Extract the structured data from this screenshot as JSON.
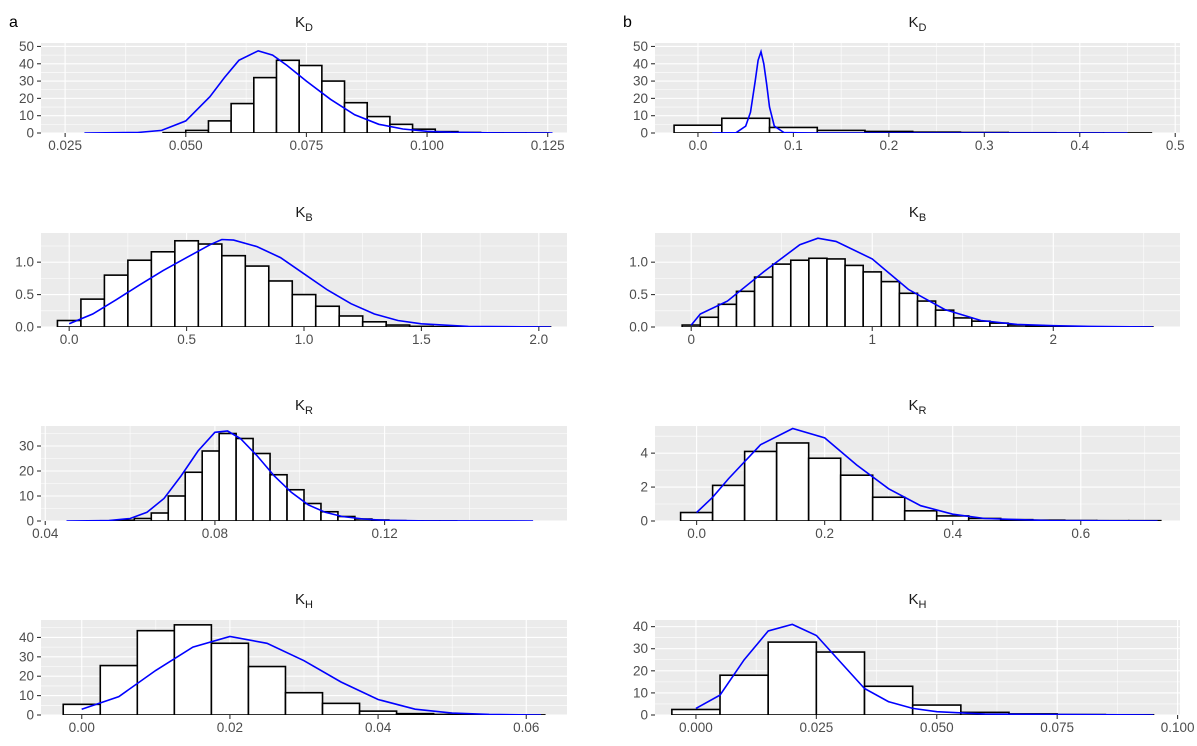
{
  "chart_data": [
    {
      "type": "histogram",
      "tag": "a",
      "title": "K",
      "title_sub": "D",
      "xlim": [
        0.02,
        0.129
      ],
      "ylim": [
        0,
        52
      ],
      "x_ticks": [
        0.05,
        0.075,
        0.1,
        0.125
      ],
      "x_tick_labels": [
        "0.050",
        "0.075",
        "0.100",
        "0.125"
      ],
      "x_ticks_extra": [
        0.025
      ],
      "x_ticks_extra_labels": [
        "0.025"
      ],
      "y_ticks": [
        0,
        10,
        20,
        30,
        40,
        50
      ],
      "y_tick_labels": [
        "0",
        "10",
        "20",
        "30",
        "40",
        "50"
      ],
      "bin_edges": [
        0.0265,
        0.0312,
        0.0359,
        0.0406,
        0.0453,
        0.05,
        0.0547,
        0.0594,
        0.0641,
        0.0688,
        0.0735,
        0.0782,
        0.0829,
        0.0876,
        0.0923,
        0.097,
        0.1017,
        0.1064,
        0.1111,
        0.1158,
        0.1205,
        0.1252
      ],
      "counts": [
        0,
        0,
        0,
        0,
        0.2,
        1.5,
        7,
        17,
        32,
        42,
        39,
        30,
        17.5,
        9.5,
        5,
        2.2,
        0.8,
        0.3,
        0.1,
        0.05,
        0.02
      ],
      "density_x": [
        0.029,
        0.04,
        0.045,
        0.05,
        0.055,
        0.058,
        0.061,
        0.065,
        0.068,
        0.071,
        0.075,
        0.08,
        0.085,
        0.09,
        0.095,
        0.1,
        0.105,
        0.11,
        0.115,
        0.126
      ],
      "density_y": [
        0,
        0.3,
        1.5,
        7,
        21,
        32,
        42,
        47.5,
        45,
        39,
        30,
        19.5,
        10.5,
        5,
        2.3,
        1,
        0.4,
        0.2,
        0.05,
        0
      ]
    },
    {
      "type": "histogram",
      "tag": "b",
      "title": "K",
      "title_sub": "D",
      "xlim": [
        -0.045,
        0.505
      ],
      "ylim": [
        0,
        52
      ],
      "x_ticks": [
        0,
        0.1,
        0.2,
        0.3,
        0.4,
        0.5
      ],
      "x_tick_labels": [
        "0.0",
        "0.1",
        "0.2",
        "0.3",
        "0.4",
        "0.5"
      ],
      "y_ticks": [
        0,
        10,
        20,
        30,
        40,
        50
      ],
      "y_tick_labels": [
        "0",
        "10",
        "20",
        "30",
        "40",
        "50"
      ],
      "bin_edges": [
        -0.025,
        0.025,
        0.075,
        0.125,
        0.175,
        0.225,
        0.275,
        0.325,
        0.375,
        0.425,
        0.475
      ],
      "counts": [
        4.5,
        8.5,
        3.2,
        1.5,
        0.9,
        0.5,
        0.3,
        0.15,
        0.07,
        0.03
      ],
      "density_x": [
        0.015,
        0.04,
        0.05,
        0.055,
        0.06,
        0.063,
        0.066,
        0.069,
        0.072,
        0.075,
        0.08,
        0.09,
        0.12,
        0.45
      ],
      "density_y": [
        0,
        0.2,
        4,
        12,
        30,
        42,
        47,
        40,
        28,
        15,
        4,
        0.3,
        0,
        0
      ]
    },
    {
      "type": "histogram",
      "tag": "",
      "title": "K",
      "title_sub": "B",
      "xlim": [
        -0.12,
        2.12
      ],
      "ylim": [
        0,
        1.45
      ],
      "x_ticks": [
        0,
        0.5,
        1,
        1.5,
        2
      ],
      "x_tick_labels": [
        "0.0",
        "0.5",
        "1.0",
        "1.5",
        "2.0"
      ],
      "y_ticks": [
        0,
        0.5,
        1
      ],
      "y_tick_labels": [
        "0.0",
        "0.5",
        "1.0"
      ],
      "bin_edges": [
        -0.05,
        0.05,
        0.15,
        0.25,
        0.35,
        0.45,
        0.55,
        0.65,
        0.75,
        0.85,
        0.95,
        1.05,
        1.15,
        1.25,
        1.35,
        1.45,
        1.55,
        1.65,
        1.75,
        1.85,
        1.95,
        2.05
      ],
      "counts": [
        0.1,
        0.43,
        0.8,
        1.03,
        1.16,
        1.33,
        1.28,
        1.1,
        0.94,
        0.71,
        0.5,
        0.32,
        0.17,
        0.08,
        0.03,
        0.01,
        0.005,
        0.003,
        0.002,
        0.001,
        0.001
      ],
      "density_x": [
        0,
        0.1,
        0.2,
        0.3,
        0.4,
        0.5,
        0.6,
        0.65,
        0.7,
        0.8,
        0.9,
        1.0,
        1.1,
        1.2,
        1.3,
        1.4,
        1.5,
        1.7,
        2.05
      ],
      "density_y": [
        0.05,
        0.2,
        0.42,
        0.65,
        0.87,
        1.07,
        1.27,
        1.35,
        1.34,
        1.24,
        1.07,
        0.82,
        0.57,
        0.36,
        0.2,
        0.1,
        0.05,
        0.01,
        0
      ]
    },
    {
      "type": "histogram",
      "tag": "",
      "title": "K",
      "title_sub": "B",
      "xlim": [
        -0.2,
        2.7
      ],
      "ylim": [
        0,
        1.45
      ],
      "x_ticks": [
        0,
        1,
        2
      ],
      "x_tick_labels": [
        "0",
        "1",
        "2"
      ],
      "y_ticks": [
        0,
        0.5,
        1
      ],
      "y_tick_labels": [
        "0.0",
        "0.5",
        "1.0"
      ],
      "bin_edges": [
        -0.05,
        0.05,
        0.15,
        0.25,
        0.35,
        0.45,
        0.55,
        0.65,
        0.75,
        0.85,
        0.95,
        1.05,
        1.15,
        1.25,
        1.35,
        1.45,
        1.55,
        1.65,
        1.75,
        1.85,
        1.95,
        2.05,
        2.15,
        2.25,
        2.35,
        2.45,
        2.55
      ],
      "counts": [
        0.03,
        0.15,
        0.35,
        0.55,
        0.77,
        0.97,
        1.03,
        1.06,
        1.05,
        0.95,
        0.85,
        0.7,
        0.52,
        0.4,
        0.26,
        0.14,
        0.09,
        0.06,
        0.03,
        0.02,
        0.01,
        0.005,
        0.003,
        0.002,
        0.002,
        0.002
      ],
      "density_x": [
        0,
        0.05,
        0.2,
        0.4,
        0.6,
        0.7,
        0.8,
        1.0,
        1.2,
        1.4,
        1.6,
        1.8,
        2.0,
        2.2,
        2.55
      ],
      "density_y": [
        0.03,
        0.2,
        0.4,
        0.85,
        1.27,
        1.37,
        1.32,
        1.05,
        0.58,
        0.27,
        0.1,
        0.04,
        0.02,
        0.01,
        0
      ]
    },
    {
      "type": "histogram",
      "tag": "",
      "title": "K",
      "title_sub": "R",
      "xlim": [
        0.039,
        0.163
      ],
      "ylim": [
        0,
        38
      ],
      "x_ticks": [
        0.04,
        0.08,
        0.12
      ],
      "x_tick_labels": [
        "0.04",
        "0.08",
        "0.12"
      ],
      "y_ticks": [
        0,
        10,
        20,
        30
      ],
      "y_tick_labels": [
        "0",
        "10",
        "20",
        "30"
      ],
      "bin_edges": [
        0.045,
        0.049,
        0.053,
        0.057,
        0.061,
        0.065,
        0.069,
        0.073,
        0.077,
        0.081,
        0.085,
        0.089,
        0.093,
        0.097,
        0.101,
        0.105,
        0.109,
        0.113,
        0.117,
        0.121,
        0.125,
        0.129,
        0.133,
        0.137,
        0.141,
        0.145,
        0.149,
        0.153,
        0.157
      ],
      "counts": [
        0,
        0,
        0.1,
        0.3,
        1,
        3.2,
        10,
        19.5,
        28,
        35,
        33,
        27,
        18.5,
        12.5,
        7,
        3.7,
        1.8,
        0.8,
        0.4,
        0.15,
        0.07,
        0.03,
        0.01,
        0,
        0,
        0,
        0,
        0
      ],
      "density_x": [
        0.045,
        0.055,
        0.06,
        0.064,
        0.068,
        0.072,
        0.076,
        0.08,
        0.083,
        0.086,
        0.09,
        0.094,
        0.098,
        0.102,
        0.106,
        0.11,
        0.115,
        0.12,
        0.13,
        0.155
      ],
      "density_y": [
        0,
        0.2,
        1,
        3.5,
        9,
        18,
        28,
        35.5,
        36,
        33,
        26,
        18,
        11.5,
        6.5,
        3.5,
        1.8,
        0.8,
        0.3,
        0.05,
        0
      ]
    },
    {
      "type": "histogram",
      "tag": "",
      "title": "K",
      "title_sub": "R",
      "xlim": [
        -0.065,
        0.755
      ],
      "ylim": [
        0,
        5.6
      ],
      "x_ticks": [
        0,
        0.2,
        0.4,
        0.6
      ],
      "x_tick_labels": [
        "0.0",
        "0.2",
        "0.4",
        "0.6"
      ],
      "y_ticks": [
        0,
        2,
        4
      ],
      "y_tick_labels": [
        "0",
        "2",
        "4"
      ],
      "bin_edges": [
        -0.025,
        0.025,
        0.075,
        0.125,
        0.175,
        0.225,
        0.275,
        0.325,
        0.375,
        0.425,
        0.475,
        0.525,
        0.575,
        0.625,
        0.675,
        0.725
      ],
      "counts": [
        0.5,
        2.1,
        4.1,
        4.6,
        3.7,
        2.7,
        1.4,
        0.6,
        0.3,
        0.15,
        0.08,
        0.05,
        0.03,
        0.02,
        0.02
      ],
      "density_x": [
        0,
        0.025,
        0.05,
        0.1,
        0.15,
        0.2,
        0.25,
        0.3,
        0.35,
        0.4,
        0.45,
        0.5,
        0.55,
        0.72
      ],
      "density_y": [
        0.5,
        1.4,
        2.5,
        4.5,
        5.45,
        4.9,
        3.3,
        1.9,
        0.9,
        0.4,
        0.15,
        0.08,
        0.03,
        0
      ]
    },
    {
      "type": "histogram",
      "tag": "",
      "title": "K",
      "title_sub": "H",
      "xlim": [
        -0.0055,
        0.0655
      ],
      "ylim": [
        0,
        49
      ],
      "x_ticks": [
        0,
        0.02,
        0.04,
        0.06
      ],
      "x_tick_labels": [
        "0.00",
        "0.02",
        "0.04",
        "0.06"
      ],
      "y_ticks": [
        0,
        10,
        20,
        30,
        40
      ],
      "y_tick_labels": [
        "0",
        "10",
        "20",
        "30",
        "40"
      ],
      "bin_edges": [
        -0.0025,
        0.0025,
        0.0075,
        0.0125,
        0.0175,
        0.0225,
        0.0275,
        0.0325,
        0.0375,
        0.0425,
        0.0475,
        0.0525,
        0.0575,
        0.0625
      ],
      "counts": [
        5.5,
        25.5,
        43.5,
        46.5,
        37,
        25,
        11.5,
        6,
        2,
        0.7,
        0.3,
        0.1,
        0.05
      ],
      "density_x": [
        0,
        0.005,
        0.01,
        0.015,
        0.02,
        0.025,
        0.03,
        0.035,
        0.04,
        0.045,
        0.05,
        0.055,
        0.062
      ],
      "density_y": [
        3,
        9.5,
        23,
        35,
        40.5,
        37,
        28,
        17,
        8,
        3,
        1,
        0.3,
        0
      ]
    },
    {
      "type": "histogram",
      "tag": "",
      "title": "K",
      "title_sub": "H",
      "xlim": [
        -0.0085,
        0.1005
      ],
      "ylim": [
        0,
        43
      ],
      "x_ticks": [
        0,
        0.025,
        0.05,
        0.075
      ],
      "x_tick_labels": [
        "0.000",
        "0.025",
        "0.050",
        "0.075"
      ],
      "x_ticks_extra": [
        0.1
      ],
      "x_ticks_extra_labels": [
        "0.100"
      ],
      "y_ticks": [
        0,
        10,
        20,
        30,
        40
      ],
      "y_tick_labels": [
        "0",
        "10",
        "20",
        "30",
        "40"
      ],
      "bin_edges": [
        -0.005,
        0.005,
        0.015,
        0.025,
        0.035,
        0.045,
        0.055,
        0.065,
        0.075,
        0.085,
        0.095
      ],
      "counts": [
        2.5,
        18,
        33,
        28.5,
        13,
        4.5,
        1.2,
        0.5,
        0.2,
        0.1
      ],
      "density_x": [
        0,
        0.005,
        0.01,
        0.015,
        0.02,
        0.025,
        0.03,
        0.035,
        0.04,
        0.045,
        0.05,
        0.06,
        0.095
      ],
      "density_y": [
        3,
        9,
        25,
        38,
        41,
        36,
        24,
        12,
        6,
        3,
        1.5,
        0.4,
        0
      ]
    }
  ]
}
